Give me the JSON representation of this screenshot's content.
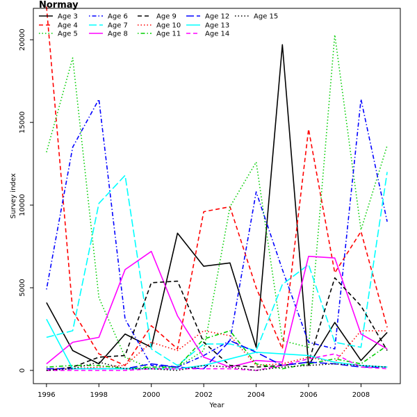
{
  "chart_data": {
    "type": "line",
    "title": "Normay",
    "xlabel": "Year",
    "ylabel": "Survey index",
    "xlim": [
      1995.5,
      2009.5
    ],
    "ylim": [
      -800,
      21900
    ],
    "x_ticks": [
      1996,
      1998,
      2000,
      2002,
      2004,
      2006,
      2008
    ],
    "y_ticks": [
      0,
      5000,
      10000,
      15000,
      20000
    ],
    "grid": false,
    "legend_position": "top-left",
    "x": [
      1996,
      1997,
      1998,
      1999,
      2000,
      2001,
      2002,
      2003,
      2004,
      2005,
      2006,
      2007,
      2008,
      2009
    ],
    "series": [
      {
        "name": "Age 3",
        "color": "#000000",
        "dash": "solid",
        "values": [
          4100,
          1200,
          400,
          2200,
          1400,
          8300,
          6300,
          6500,
          1400,
          19700,
          300,
          2900,
          600,
          2300
        ]
      },
      {
        "name": "Age 4",
        "color": "#ff0000",
        "dash": "dashed",
        "values": [
          22000,
          3600,
          1000,
          300,
          2700,
          1300,
          9600,
          9900,
          5000,
          1300,
          14600,
          5900,
          8400,
          2600
        ]
      },
      {
        "name": "Age 5",
        "color": "#00cd00",
        "dash": "dotted",
        "values": [
          13200,
          18900,
          4400,
          800,
          100,
          200,
          1200,
          9900,
          12600,
          1800,
          1400,
          20300,
          8500,
          13600
        ]
      },
      {
        "name": "Age 6",
        "color": "#0000ff",
        "dash": "dashdot",
        "values": [
          4900,
          13500,
          16400,
          3100,
          300,
          200,
          900,
          1800,
          10800,
          6100,
          1700,
          1300,
          16400,
          9000
        ]
      },
      {
        "name": "Age 7",
        "color": "#00ffff",
        "dash": "longdash",
        "values": [
          2000,
          2400,
          10100,
          11800,
          1300,
          300,
          1600,
          1600,
          1200,
          5200,
          6400,
          1700,
          1400,
          12000
        ]
      },
      {
        "name": "Age 8",
        "color": "#ff00ff",
        "dash": "solid",
        "values": [
          400,
          1700,
          2000,
          6100,
          7200,
          3300,
          800,
          200,
          600,
          500,
          6900,
          6800,
          2200,
          1300
        ]
      },
      {
        "name": "Age 9",
        "color": "#000000",
        "dash": "dashed",
        "values": [
          0,
          200,
          800,
          900,
          5300,
          5400,
          1700,
          300,
          200,
          300,
          500,
          5600,
          3900,
          1200
        ]
      },
      {
        "name": "Age 10",
        "color": "#ff0000",
        "dash": "dotted",
        "values": [
          100,
          100,
          200,
          300,
          1700,
          1200,
          2400,
          2100,
          300,
          400,
          800,
          500,
          2400,
          2400
        ]
      },
      {
        "name": "Age 11",
        "color": "#00cd00",
        "dash": "dashdot",
        "values": [
          200,
          300,
          300,
          100,
          200,
          200,
          1900,
          2400,
          400,
          100,
          400,
          700,
          400,
          1500
        ]
      },
      {
        "name": "Age 12",
        "color": "#0000ff",
        "dash": "longdash",
        "values": [
          100,
          100,
          100,
          100,
          400,
          200,
          100,
          1800,
          1100,
          300,
          500,
          400,
          200,
          200
        ]
      },
      {
        "name": "Age 13",
        "color": "#00ffff",
        "dash": "solid",
        "values": [
          3100,
          100,
          100,
          100,
          100,
          100,
          300,
          700,
          1100,
          1000,
          900,
          500,
          300,
          200
        ]
      },
      {
        "name": "Age 14",
        "color": "#ff00ff",
        "dash": "dashed",
        "values": [
          0,
          0,
          0,
          0,
          100,
          100,
          100,
          100,
          0,
          300,
          700,
          1000,
          200,
          100
        ]
      },
      {
        "name": "Age 15",
        "color": "#000000",
        "dash": "dotted",
        "values": [
          0,
          100,
          500,
          100,
          100,
          0,
          300,
          200,
          0,
          200,
          300,
          400,
          300,
          200
        ]
      }
    ]
  }
}
